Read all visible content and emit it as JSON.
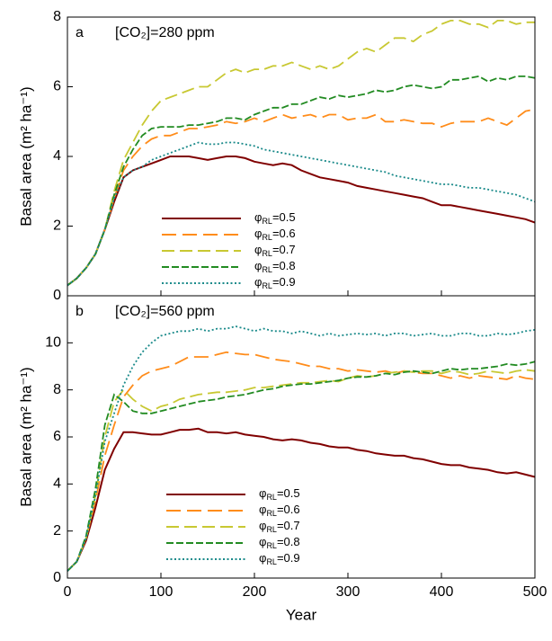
{
  "chart_data": [
    {
      "type": "line",
      "label": "a",
      "title": "[CO₂]=280 ppm",
      "ylabel": "Basal area (m² ha⁻¹)",
      "x": [
        0,
        10,
        20,
        30,
        40,
        50,
        60,
        70,
        80,
        90,
        100,
        110,
        120,
        130,
        140,
        150,
        160,
        170,
        180,
        190,
        200,
        210,
        220,
        230,
        240,
        250,
        260,
        270,
        280,
        290,
        300,
        310,
        320,
        330,
        340,
        350,
        360,
        370,
        380,
        390,
        400,
        410,
        420,
        430,
        440,
        450,
        460,
        470,
        480,
        490,
        500
      ],
      "xlim": [
        0,
        500
      ],
      "xticks": [
        0,
        100,
        200,
        300,
        400,
        500
      ],
      "ylim": [
        0,
        8
      ],
      "yticks": [
        0,
        2,
        4,
        6,
        8
      ],
      "series": [
        {
          "name": "φRL=0.5",
          "color": "#800000",
          "values": [
            0.3,
            0.5,
            0.8,
            1.2,
            1.9,
            2.7,
            3.4,
            3.6,
            3.7,
            3.8,
            3.9,
            4.0,
            4.0,
            4.0,
            3.95,
            3.9,
            3.95,
            4.0,
            4.0,
            3.95,
            3.85,
            3.8,
            3.75,
            3.8,
            3.75,
            3.6,
            3.5,
            3.4,
            3.35,
            3.3,
            3.25,
            3.15,
            3.1,
            3.05,
            3.0,
            2.95,
            2.9,
            2.85,
            2.8,
            2.7,
            2.6,
            2.6,
            2.55,
            2.5,
            2.45,
            2.4,
            2.35,
            2.3,
            2.25,
            2.2,
            2.1
          ]
        },
        {
          "name": "φRL=0.6",
          "color": "#ff8c1a",
          "values": [
            0.3,
            0.5,
            0.8,
            1.2,
            1.9,
            2.8,
            3.6,
            4.0,
            4.3,
            4.5,
            4.6,
            4.6,
            4.7,
            4.8,
            4.8,
            4.85,
            4.9,
            5.0,
            4.95,
            5.0,
            5.1,
            5.0,
            5.1,
            5.2,
            5.1,
            5.15,
            5.2,
            5.1,
            5.2,
            5.2,
            5.05,
            5.1,
            5.1,
            5.2,
            5.0,
            5.0,
            5.05,
            5.0,
            4.95,
            4.95,
            4.85,
            4.95,
            5.0,
            5.0,
            5.0,
            5.1,
            5.0,
            4.9,
            5.1,
            5.3,
            5.35
          ]
        },
        {
          "name": "φRL=0.7",
          "color": "#c8c832",
          "values": [
            0.3,
            0.5,
            0.8,
            1.2,
            1.9,
            3.0,
            3.9,
            4.4,
            4.9,
            5.3,
            5.6,
            5.7,
            5.8,
            5.9,
            6.0,
            6.0,
            6.2,
            6.4,
            6.5,
            6.4,
            6.5,
            6.5,
            6.6,
            6.6,
            6.7,
            6.6,
            6.5,
            6.6,
            6.5,
            6.6,
            6.8,
            7.0,
            7.1,
            7.0,
            7.2,
            7.4,
            7.4,
            7.3,
            7.5,
            7.6,
            7.8,
            7.9,
            7.9,
            7.8,
            7.8,
            7.7,
            7.9,
            7.9,
            7.8,
            7.85,
            7.85
          ]
        },
        {
          "name": "φRL=0.8",
          "color": "#228b22",
          "values": [
            0.3,
            0.5,
            0.8,
            1.2,
            1.9,
            2.9,
            3.7,
            4.2,
            4.6,
            4.8,
            4.85,
            4.85,
            4.85,
            4.9,
            4.9,
            4.95,
            5.0,
            5.1,
            5.1,
            5.05,
            5.2,
            5.3,
            5.4,
            5.4,
            5.5,
            5.5,
            5.6,
            5.7,
            5.65,
            5.75,
            5.7,
            5.75,
            5.8,
            5.9,
            5.85,
            5.9,
            6.0,
            6.05,
            6.0,
            5.95,
            6.0,
            6.2,
            6.2,
            6.25,
            6.3,
            6.15,
            6.25,
            6.2,
            6.3,
            6.3,
            6.25
          ]
        },
        {
          "name": "φRL=0.9",
          "color": "#1a8a8a",
          "values": [
            0.3,
            0.5,
            0.8,
            1.2,
            1.9,
            2.8,
            3.4,
            3.6,
            3.7,
            3.9,
            4.0,
            4.1,
            4.2,
            4.3,
            4.4,
            4.35,
            4.35,
            4.4,
            4.4,
            4.35,
            4.3,
            4.2,
            4.15,
            4.1,
            4.05,
            4.0,
            3.95,
            3.9,
            3.85,
            3.8,
            3.75,
            3.7,
            3.65,
            3.6,
            3.55,
            3.45,
            3.4,
            3.35,
            3.3,
            3.25,
            3.2,
            3.2,
            3.15,
            3.1,
            3.1,
            3.05,
            3.0,
            2.95,
            2.9,
            2.8,
            2.7
          ]
        }
      ]
    },
    {
      "type": "line",
      "label": "b",
      "title": "[CO₂]=560 ppm",
      "ylabel": "Basal area (m² ha⁻¹)",
      "xlabel": "Year",
      "x": [
        0,
        10,
        20,
        30,
        40,
        50,
        60,
        70,
        80,
        90,
        100,
        110,
        120,
        130,
        140,
        150,
        160,
        170,
        180,
        190,
        200,
        210,
        220,
        230,
        240,
        250,
        260,
        270,
        280,
        290,
        300,
        310,
        320,
        330,
        340,
        350,
        360,
        370,
        380,
        390,
        400,
        410,
        420,
        430,
        440,
        450,
        460,
        470,
        480,
        490,
        500
      ],
      "xlim": [
        0,
        500
      ],
      "xticks": [
        0,
        100,
        200,
        300,
        400,
        500
      ],
      "ylim": [
        0,
        12
      ],
      "yticks": [
        0,
        2,
        4,
        6,
        8,
        10
      ],
      "series": [
        {
          "name": "φRL=0.5",
          "color": "#800000",
          "values": [
            0.3,
            0.7,
            1.6,
            3.0,
            4.6,
            5.5,
            6.2,
            6.2,
            6.15,
            6.1,
            6.1,
            6.2,
            6.3,
            6.3,
            6.35,
            6.2,
            6.2,
            6.15,
            6.2,
            6.1,
            6.05,
            6.0,
            5.9,
            5.85,
            5.9,
            5.85,
            5.75,
            5.7,
            5.6,
            5.55,
            5.55,
            5.45,
            5.4,
            5.3,
            5.25,
            5.2,
            5.2,
            5.1,
            5.05,
            4.95,
            4.85,
            4.8,
            4.8,
            4.7,
            4.65,
            4.6,
            4.5,
            4.45,
            4.5,
            4.4,
            4.3
          ]
        },
        {
          "name": "φRL=0.6",
          "color": "#ff8c1a",
          "values": [
            0.3,
            0.7,
            1.7,
            3.3,
            5.2,
            6.5,
            7.7,
            8.2,
            8.6,
            8.8,
            8.9,
            9.0,
            9.2,
            9.4,
            9.4,
            9.4,
            9.5,
            9.6,
            9.55,
            9.5,
            9.5,
            9.4,
            9.3,
            9.25,
            9.2,
            9.1,
            9.0,
            9.0,
            8.9,
            8.9,
            8.8,
            8.85,
            8.8,
            8.75,
            8.8,
            8.7,
            8.8,
            8.75,
            8.7,
            8.7,
            8.6,
            8.5,
            8.6,
            8.5,
            8.6,
            8.55,
            8.5,
            8.45,
            8.6,
            8.5,
            8.45
          ]
        },
        {
          "name": "φRL=0.7",
          "color": "#c8c832",
          "values": [
            0.3,
            0.7,
            1.7,
            3.5,
            6.0,
            7.5,
            8.0,
            7.6,
            7.3,
            7.1,
            7.3,
            7.4,
            7.6,
            7.7,
            7.8,
            7.85,
            7.9,
            7.9,
            7.95,
            8.0,
            8.1,
            8.1,
            8.15,
            8.2,
            8.25,
            8.3,
            8.3,
            8.35,
            8.4,
            8.35,
            8.5,
            8.6,
            8.55,
            8.6,
            8.7,
            8.75,
            8.8,
            8.75,
            8.8,
            8.8,
            8.7,
            8.8,
            8.75,
            8.65,
            8.7,
            8.8,
            8.75,
            8.7,
            8.8,
            8.85,
            8.8
          ]
        },
        {
          "name": "φRL=0.8",
          "color": "#228b22",
          "values": [
            0.3,
            0.7,
            1.8,
            3.8,
            6.5,
            7.8,
            7.5,
            7.1,
            7.0,
            7.0,
            7.1,
            7.2,
            7.3,
            7.4,
            7.5,
            7.55,
            7.6,
            7.7,
            7.75,
            7.8,
            7.9,
            8.0,
            8.05,
            8.15,
            8.2,
            8.25,
            8.25,
            8.3,
            8.35,
            8.4,
            8.5,
            8.55,
            8.55,
            8.6,
            8.7,
            8.65,
            8.75,
            8.8,
            8.75,
            8.7,
            8.8,
            8.9,
            8.85,
            8.9,
            8.9,
            8.95,
            9.0,
            9.1,
            9.05,
            9.1,
            9.2
          ]
        },
        {
          "name": "φRL=0.9",
          "color": "#1a8a8a",
          "values": [
            0.3,
            0.7,
            1.7,
            3.5,
            5.8,
            7.0,
            8.2,
            9.0,
            9.6,
            10.0,
            10.3,
            10.4,
            10.5,
            10.5,
            10.6,
            10.5,
            10.6,
            10.6,
            10.7,
            10.6,
            10.5,
            10.6,
            10.5,
            10.5,
            10.4,
            10.5,
            10.4,
            10.3,
            10.4,
            10.3,
            10.35,
            10.4,
            10.35,
            10.4,
            10.3,
            10.4,
            10.4,
            10.3,
            10.35,
            10.4,
            10.3,
            10.3,
            10.4,
            10.4,
            10.3,
            10.3,
            10.4,
            10.35,
            10.4,
            10.5,
            10.55
          ]
        }
      ]
    }
  ]
}
